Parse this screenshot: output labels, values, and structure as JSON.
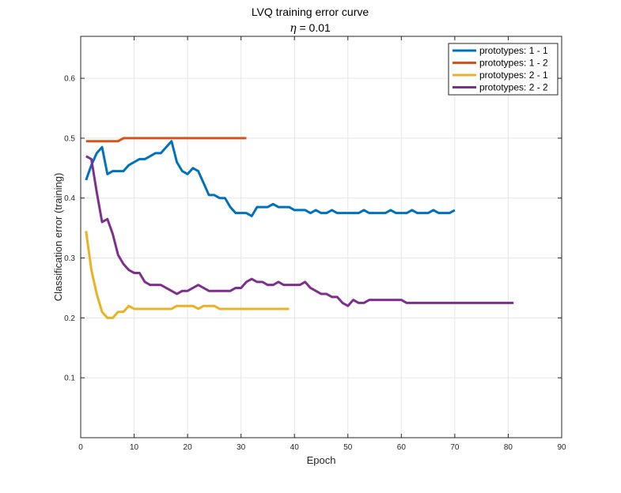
{
  "chart_data": {
    "type": "line",
    "title": "LVQ training error curve",
    "subtitle": {
      "symbol": "η",
      "text": " = 0.01"
    },
    "xlabel": "Epoch",
    "ylabel": "Classification error (training)",
    "xlim": [
      0,
      90
    ],
    "ylim": [
      0,
      0.67
    ],
    "xticks": [
      "0",
      "10",
      "20",
      "30",
      "40",
      "50",
      "60",
      "70",
      "80",
      "90"
    ],
    "xtick_values": [
      0,
      10,
      20,
      30,
      40,
      50,
      60,
      70,
      80,
      90
    ],
    "yticks": [
      "0.1",
      "0.2",
      "0.3",
      "0.4",
      "0.5",
      "0.6"
    ],
    "ytick_values": [
      0.1,
      0.2,
      0.3,
      0.4,
      0.5,
      0.6
    ],
    "grid": true,
    "legend_position": "top-right",
    "series": [
      {
        "name": "prototypes: 1 - 1",
        "color": "#0072BD",
        "x": [
          1,
          2,
          3,
          4,
          5,
          6,
          7,
          8,
          9,
          10,
          11,
          12,
          13,
          14,
          15,
          16,
          17,
          18,
          19,
          20,
          21,
          22,
          23,
          24,
          25,
          26,
          27,
          28,
          29,
          30,
          31,
          32,
          33,
          34,
          35,
          36,
          37,
          38,
          39,
          40,
          41,
          42,
          43,
          44,
          45,
          46,
          47,
          48,
          49,
          50,
          51,
          52,
          53,
          54,
          55,
          56,
          57,
          58,
          59,
          60,
          61,
          62,
          63,
          64,
          65,
          66,
          67,
          68,
          69,
          70
        ],
        "y": [
          0.43,
          0.455,
          0.475,
          0.485,
          0.44,
          0.445,
          0.445,
          0.445,
          0.455,
          0.46,
          0.465,
          0.465,
          0.47,
          0.475,
          0.475,
          0.485,
          0.495,
          0.46,
          0.445,
          0.44,
          0.45,
          0.445,
          0.425,
          0.405,
          0.405,
          0.4,
          0.4,
          0.385,
          0.375,
          0.375,
          0.375,
          0.37,
          0.385,
          0.385,
          0.385,
          0.39,
          0.385,
          0.385,
          0.385,
          0.38,
          0.38,
          0.38,
          0.375,
          0.38,
          0.375,
          0.375,
          0.38,
          0.375,
          0.375,
          0.375,
          0.375,
          0.375,
          0.38,
          0.375,
          0.375,
          0.375,
          0.375,
          0.38,
          0.375,
          0.375,
          0.375,
          0.38,
          0.375,
          0.375,
          0.375,
          0.38,
          0.375,
          0.375,
          0.375,
          0.38
        ]
      },
      {
        "name": "prototypes: 1 - 2",
        "color": "#D95319",
        "x": [
          1,
          2,
          3,
          4,
          5,
          6,
          7,
          8,
          9,
          10,
          11,
          12,
          13,
          14,
          15,
          16,
          17,
          18,
          19,
          20,
          21,
          22,
          23,
          24,
          25,
          26,
          27,
          28,
          29,
          30,
          31
        ],
        "y": [
          0.495,
          0.495,
          0.495,
          0.495,
          0.495,
          0.495,
          0.495,
          0.5,
          0.5,
          0.5,
          0.5,
          0.5,
          0.5,
          0.5,
          0.5,
          0.5,
          0.5,
          0.5,
          0.5,
          0.5,
          0.5,
          0.5,
          0.5,
          0.5,
          0.5,
          0.5,
          0.5,
          0.5,
          0.5,
          0.5,
          0.5
        ]
      },
      {
        "name": "prototypes: 2 - 1",
        "color": "#EDB120",
        "x": [
          1,
          2,
          3,
          4,
          5,
          6,
          7,
          8,
          9,
          10,
          11,
          12,
          13,
          14,
          15,
          16,
          17,
          18,
          19,
          20,
          21,
          22,
          23,
          24,
          25,
          26,
          27,
          28,
          29,
          30,
          31,
          32,
          33,
          34,
          35,
          36,
          37,
          38,
          39
        ],
        "y": [
          0.345,
          0.28,
          0.24,
          0.21,
          0.2,
          0.2,
          0.21,
          0.21,
          0.22,
          0.215,
          0.215,
          0.215,
          0.215,
          0.215,
          0.215,
          0.215,
          0.215,
          0.22,
          0.22,
          0.22,
          0.22,
          0.215,
          0.22,
          0.22,
          0.22,
          0.215,
          0.215,
          0.215,
          0.215,
          0.215,
          0.215,
          0.215,
          0.215,
          0.215,
          0.215,
          0.215,
          0.215,
          0.215,
          0.215
        ]
      },
      {
        "name": "prototypes: 2 - 2",
        "color": "#7E2F8E",
        "x": [
          1,
          2,
          3,
          4,
          5,
          6,
          7,
          8,
          9,
          10,
          11,
          12,
          13,
          14,
          15,
          16,
          17,
          18,
          19,
          20,
          21,
          22,
          23,
          24,
          25,
          26,
          27,
          28,
          29,
          30,
          31,
          32,
          33,
          34,
          35,
          36,
          37,
          38,
          39,
          40,
          41,
          42,
          43,
          44,
          45,
          46,
          47,
          48,
          49,
          50,
          51,
          52,
          53,
          54,
          55,
          56,
          57,
          58,
          59,
          60,
          61,
          62,
          63,
          64,
          65,
          66,
          67,
          68,
          69,
          70,
          71,
          72,
          73,
          74,
          75,
          76,
          77,
          78,
          79,
          80,
          81
        ],
        "y": [
          0.47,
          0.465,
          0.41,
          0.36,
          0.365,
          0.34,
          0.305,
          0.29,
          0.28,
          0.275,
          0.275,
          0.26,
          0.255,
          0.255,
          0.255,
          0.25,
          0.245,
          0.24,
          0.245,
          0.245,
          0.25,
          0.255,
          0.25,
          0.245,
          0.245,
          0.245,
          0.245,
          0.245,
          0.25,
          0.25,
          0.26,
          0.265,
          0.26,
          0.26,
          0.255,
          0.255,
          0.26,
          0.255,
          0.255,
          0.255,
          0.255,
          0.26,
          0.25,
          0.245,
          0.24,
          0.24,
          0.235,
          0.235,
          0.225,
          0.22,
          0.23,
          0.225,
          0.225,
          0.23,
          0.23,
          0.23,
          0.23,
          0.23,
          0.23,
          0.23,
          0.225,
          0.225,
          0.225,
          0.225,
          0.225,
          0.225,
          0.225,
          0.225,
          0.225,
          0.225,
          0.225,
          0.225,
          0.225,
          0.225,
          0.225,
          0.225,
          0.225,
          0.225,
          0.225,
          0.225,
          0.225
        ]
      }
    ]
  }
}
